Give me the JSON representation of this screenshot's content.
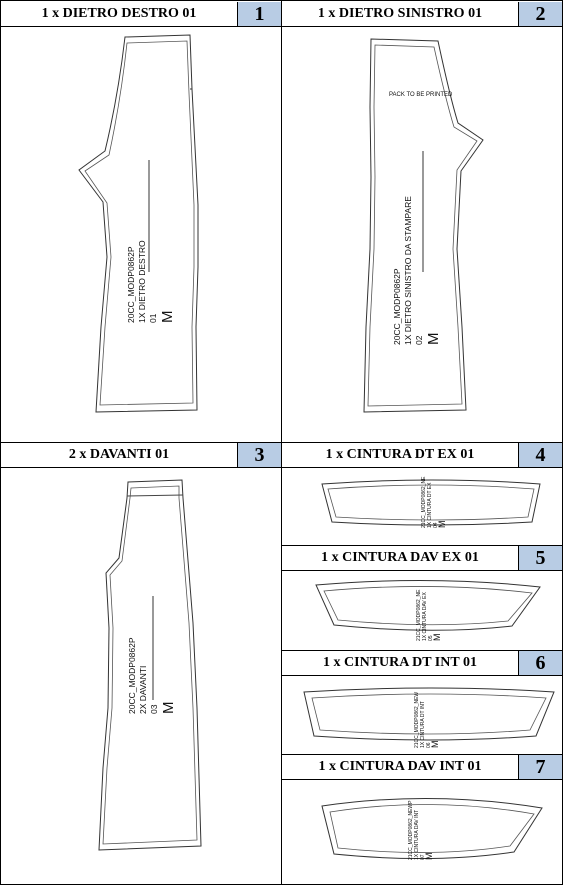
{
  "pieces": [
    {
      "title": "1 x DIETRO DESTRO 01",
      "number": "1",
      "labels": [
        "20CC_MODP0862P",
        "1X DIETRO DESTRO",
        "01",
        "M"
      ]
    },
    {
      "title": "1 x DIETRO SINISTRO 01",
      "number": "2",
      "note": "PACK TO BE PRINTED",
      "labels": [
        "20CC_MODP0862P",
        "1X DIETRO SINISTRO DA STAMPARE",
        "02",
        "M"
      ]
    },
    {
      "title": "2 x DAVANTI 01",
      "number": "3",
      "labels": [
        "20CC_MODP0862P",
        "2X DAVANTI",
        "03",
        "M"
      ]
    },
    {
      "title": "1 x CINTURA DT EX 01",
      "number": "4",
      "labels": [
        "21CC_MODP0862_NE",
        "1X CINTURA DT EX",
        "04",
        "M"
      ]
    },
    {
      "title": "1 x CINTURA DAV EX 01",
      "number": "5",
      "labels": [
        "21CC_MODP0862_NE",
        "1X CINTURA DAV EX",
        "05",
        "M"
      ]
    },
    {
      "title": "1 x CINTURA DT INT 01",
      "number": "6",
      "labels": [
        "21CC_MODP0862_NEW",
        "1X CINTURA DT INT",
        "06",
        "M"
      ]
    },
    {
      "title": "1 x CINTURA DAV INT 01",
      "number": "7",
      "labels": [
        "21CC_MODP0862_NEWP",
        "1X CINTURA DAV INT",
        "07",
        "M"
      ]
    }
  ]
}
